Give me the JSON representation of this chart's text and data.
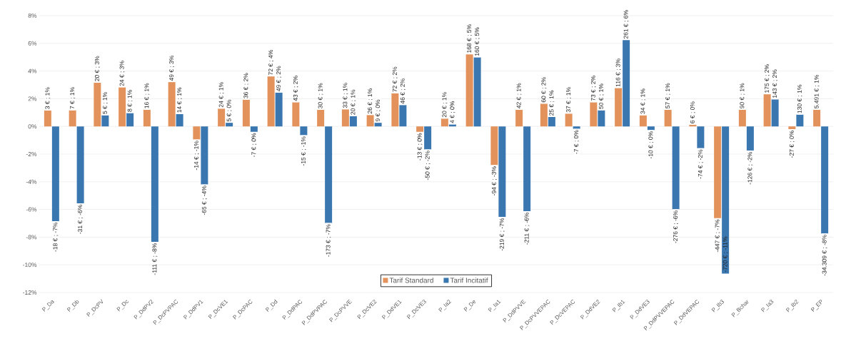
{
  "chart_data": {
    "type": "bar",
    "categories": [
      "P_Da",
      "P_Db",
      "P_DcPV",
      "P_Dc",
      "P_DdPV2",
      "P_DcPVPAC",
      "P_DdPV1",
      "P_DcVE1",
      "P_DcPAC",
      "P_Dd",
      "P_DdPAC",
      "P_DdPVPAC",
      "P_DcPVVE",
      "P_DcVE2",
      "P_DdVE1",
      "P_DcVE3",
      "P_Ia2",
      "P_De",
      "P_Ia1",
      "P_DdPVVE",
      "P_DcPVVEPAC",
      "P_DcVEPAC",
      "P_DdVE2",
      "P_Ib1",
      "P_DdVE3",
      "P_DdPVVEPAC",
      "P_DdVEPAC",
      "P_Ib3",
      "P_Bchar",
      "P_Ia3",
      "P_Ib2",
      "P_EP"
    ],
    "series": [
      {
        "name": "Tarif Standard",
        "color": "#e3925b",
        "values": [
          1.15,
          1.16,
          3.16,
          2.82,
          1.2,
          3.2,
          -0.94,
          1.28,
          1.93,
          3.61,
          1.74,
          1.2,
          1.23,
          0.82,
          2.39,
          -0.39,
          0.56,
          5.21,
          -2.79,
          1.2,
          1.64,
          0.92,
          1.74,
          2.77,
          0.8,
          1.2,
          0.12,
          -6.63,
          1.2,
          2.32,
          -0.2,
          1.2
        ],
        "value_labels": [
          "3 € ; 1%",
          "7 € ; 1%",
          "20 € ; 3%",
          "24 € ; 3%",
          "16 € ; 1%",
          "49 € ; 3%",
          "-14 € ; -1%",
          "24 € ; 1%",
          "36 € ; 2%",
          "72 € ; 4%",
          "43 € ; 2%",
          "30 € ; 1%",
          "33 € ; 1%",
          "26 € ; 1%",
          "72 € ; 2%",
          "-13 € ; 0%",
          "20 € ; 1%",
          "168 € ; 5%",
          "-94 € ; -3%",
          "42 € ; 1%",
          "60 € ; 2%",
          "37 € ; 1%",
          "73 € ; 2%",
          "116 € ; 3%",
          "34 € ; 1%",
          "57 € ; 1%",
          "6 € ; 0%",
          "-447 € ; -7%",
          "90 € ; 1%",
          "175 € ; 2%",
          "-27 € ; 0%",
          "5.491 € ; 1%"
        ]
      },
      {
        "name": "Tarif Incitatif",
        "color": "#3a77b0",
        "values": [
          -6.84,
          -5.56,
          0.8,
          0.96,
          -8.34,
          0.89,
          -4.19,
          0.26,
          -0.39,
          2.44,
          -0.63,
          -6.97,
          0.74,
          0.26,
          1.54,
          -1.66,
          0.14,
          4.99,
          -6.53,
          -6.12,
          0.68,
          -0.17,
          1.16,
          6.24,
          -0.26,
          -5.98,
          -1.57,
          -10.63,
          -1.74,
          1.95,
          0.85,
          -7.73
        ],
        "value_labels": [
          "-18 € ; -7%",
          "-31 € ; -6%",
          "5 € ; 1%",
          "8 € ; 1%",
          "-111 € ; -8%",
          "14 € ; 1%",
          "-65 € ; -4%",
          "5 € ; 0%",
          "-7 € ; 0%",
          "49 € ; 2%",
          "-15 € ; -1%",
          "-173 € ; -7%",
          "20 € ; 1%",
          "9 € ; 0%",
          "46 € ; 2%",
          "-50 € ; -2%",
          "4 € ; 0%",
          "160 € ; 5%",
          "-219 € ; -7%",
          "-211 € ; -6%",
          "25 € ; 1%",
          "-7 € ; 0%",
          "50 € ; 1%",
          "261 € ; 6%",
          "-10 € ; 0%",
          "-276 € ; -6%",
          "-74 € ; -2%",
          "-720 € ; -11%",
          "-126 € ; -2%",
          "143 € ; 2%",
          "130 € ; 1%",
          "-34.309 € ; -8%"
        ]
      }
    ],
    "ylim": [
      -12,
      8
    ],
    "yticks": [
      {
        "value": -12,
        "label": "-12%"
      },
      {
        "value": -10,
        "label": "-10%"
      },
      {
        "value": -8,
        "label": "-8%"
      },
      {
        "value": -6,
        "label": "-6%"
      },
      {
        "value": -4,
        "label": "-4%"
      },
      {
        "value": -2,
        "label": "-2%"
      },
      {
        "value": 0,
        "label": "0%"
      },
      {
        "value": 2,
        "label": "2%"
      },
      {
        "value": 4,
        "label": "4%"
      },
      {
        "value": 6,
        "label": "6%"
      },
      {
        "value": 8,
        "label": "8%"
      }
    ],
    "grid": "y",
    "legend": "bottom"
  }
}
